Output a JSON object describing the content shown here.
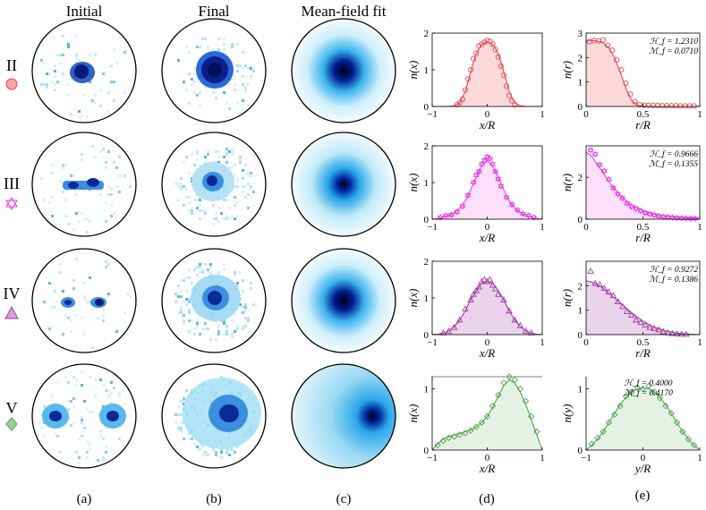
{
  "headers": {
    "initial": "Initial",
    "final": "Final",
    "meanfield": "Mean-field fit"
  },
  "row_labels": [
    "II",
    "III",
    "IV",
    "V"
  ],
  "row_markers": [
    "circle",
    "star",
    "triangle",
    "diamond"
  ],
  "row_colors": [
    "#e8474f",
    "#e83ee8",
    "#a23aa2",
    "#4fa34f"
  ],
  "fill_colors": [
    "#fbd9da",
    "#fbdffb",
    "#ecd3ec",
    "#e5f2e3"
  ],
  "sublabels": [
    "(a)",
    "(b)",
    "(c)",
    "(d)",
    "(e)"
  ],
  "chart_data": [
    {
      "type": "line",
      "panel": "d",
      "row": "II",
      "xlabel": "x/R",
      "ylabel": "n(x)",
      "xlim": [
        -1,
        1
      ],
      "ylim": [
        0,
        2
      ],
      "xticks": [
        "-1",
        "0",
        "1"
      ],
      "yticks": [
        "0",
        "1",
        "2"
      ],
      "x": [
        -1.0,
        -0.9,
        -0.8,
        -0.7,
        -0.6,
        -0.5,
        -0.4,
        -0.3,
        -0.2,
        -0.1,
        0.0,
        0.1,
        0.2,
        0.3,
        0.4,
        0.5,
        0.6,
        0.7,
        0.8,
        0.9,
        1.0
      ],
      "fit": [
        0,
        0,
        0,
        0,
        0.02,
        0.1,
        0.4,
        0.95,
        1.45,
        1.7,
        1.75,
        1.7,
        1.45,
        0.95,
        0.4,
        0.1,
        0.02,
        0,
        0,
        0,
        0
      ],
      "points_x": [
        -0.55,
        -0.5,
        -0.45,
        -0.4,
        -0.35,
        -0.3,
        -0.25,
        -0.2,
        -0.15,
        -0.1,
        -0.05,
        0.0,
        0.05,
        0.1,
        0.15,
        0.2,
        0.25,
        0.3,
        0.35,
        0.4,
        0.45,
        0.5
      ],
      "points_y": [
        0.05,
        0.1,
        0.2,
        0.45,
        0.75,
        1.0,
        1.3,
        1.45,
        1.65,
        1.7,
        1.75,
        1.8,
        1.78,
        1.7,
        1.55,
        1.35,
        1.1,
        0.85,
        0.55,
        0.3,
        0.15,
        0.05
      ]
    },
    {
      "type": "line",
      "panel": "e",
      "row": "II",
      "xlabel": "r/R",
      "ylabel": "n(r)",
      "xlim": [
        0,
        1
      ],
      "ylim": [
        0,
        3
      ],
      "xticks": [
        "0",
        "0.5",
        "1"
      ],
      "yticks": [
        "0",
        "1",
        "2",
        "3"
      ],
      "stats": [
        "ℋ_f = 1.2310",
        "ℳ_f = 0.0710"
      ],
      "x": [
        0,
        0.05,
        0.1,
        0.15,
        0.2,
        0.25,
        0.3,
        0.35,
        0.4,
        0.45,
        0.5,
        0.6,
        0.7,
        0.8,
        0.9,
        1.0
      ],
      "fit": [
        2.7,
        2.7,
        2.68,
        2.6,
        2.4,
        2.0,
        1.4,
        0.75,
        0.25,
        0.05,
        0.01,
        0,
        0,
        0,
        0,
        0
      ],
      "points_x": [
        0.03,
        0.07,
        0.11,
        0.15,
        0.19,
        0.23,
        0.27,
        0.31,
        0.35,
        0.39,
        0.43,
        0.47,
        0.51,
        0.55,
        0.59,
        0.63,
        0.67,
        0.71,
        0.75,
        0.79,
        0.83,
        0.87,
        0.91,
        0.95
      ],
      "points_y": [
        2.65,
        2.7,
        2.68,
        2.72,
        2.5,
        2.3,
        1.9,
        1.5,
        0.95,
        0.5,
        0.2,
        0.08,
        0.05,
        0.05,
        0.04,
        0.04,
        0.03,
        0.03,
        0.03,
        0.03,
        0.02,
        0.02,
        0.02,
        0.02
      ]
    },
    {
      "type": "line",
      "panel": "d",
      "row": "III",
      "xlabel": "x/R",
      "ylabel": "n(x)",
      "xlim": [
        -1,
        1
      ],
      "ylim": [
        0,
        2
      ],
      "xticks": [
        "-1",
        "0",
        "1"
      ],
      "yticks": [
        "0",
        "1",
        "2"
      ],
      "x": [
        -1.0,
        -0.9,
        -0.8,
        -0.7,
        -0.6,
        -0.5,
        -0.4,
        -0.3,
        -0.2,
        -0.1,
        0.0,
        0.1,
        0.2,
        0.3,
        0.4,
        0.5,
        0.6,
        0.7,
        0.8,
        0.9,
        1.0
      ],
      "fit": [
        0,
        0.02,
        0.05,
        0.1,
        0.18,
        0.3,
        0.5,
        0.8,
        1.15,
        1.45,
        1.6,
        1.45,
        1.15,
        0.8,
        0.5,
        0.3,
        0.18,
        0.1,
        0.05,
        0.02,
        0
      ],
      "points_x": [
        -0.85,
        -0.75,
        -0.65,
        -0.55,
        -0.45,
        -0.35,
        -0.25,
        -0.2,
        -0.15,
        -0.1,
        -0.05,
        0.0,
        0.05,
        0.1,
        0.15,
        0.2,
        0.25,
        0.35,
        0.45,
        0.55,
        0.65,
        0.75,
        0.85
      ],
      "points_y": [
        0.05,
        0.1,
        0.12,
        0.2,
        0.35,
        0.65,
        1.0,
        1.2,
        1.3,
        1.5,
        1.6,
        1.7,
        1.65,
        1.5,
        1.3,
        1.1,
        0.9,
        0.6,
        0.4,
        0.25,
        0.15,
        0.1,
        0.05
      ]
    },
    {
      "type": "line",
      "panel": "e",
      "row": "III",
      "xlabel": "r/R",
      "ylabel": "n(r)",
      "xlim": [
        0,
        1
      ],
      "ylim": [
        0,
        3.5
      ],
      "xticks": [
        "0",
        "0.5",
        "1"
      ],
      "yticks": [
        "0",
        "2"
      ],
      "stats": [
        "ℋ_f = 0.9666",
        "ℳ_f = 0.1355"
      ],
      "x": [
        0,
        0.05,
        0.1,
        0.15,
        0.2,
        0.25,
        0.3,
        0.35,
        0.4,
        0.45,
        0.5,
        0.6,
        0.7,
        0.8,
        0.9,
        1.0
      ],
      "fit": [
        3.2,
        3.0,
        2.6,
        2.2,
        1.8,
        1.45,
        1.15,
        0.9,
        0.7,
        0.55,
        0.42,
        0.25,
        0.15,
        0.1,
        0.06,
        0.04
      ],
      "points_x": [
        0.04,
        0.08,
        0.12,
        0.16,
        0.2,
        0.24,
        0.28,
        0.32,
        0.36,
        0.4,
        0.44,
        0.48,
        0.52,
        0.56,
        0.6,
        0.64,
        0.68,
        0.72,
        0.76,
        0.8,
        0.84,
        0.88,
        0.92,
        0.96
      ],
      "points_y": [
        3.3,
        3.1,
        2.6,
        2.3,
        1.9,
        1.5,
        1.2,
        1.0,
        0.75,
        0.6,
        0.5,
        0.4,
        0.3,
        0.25,
        0.2,
        0.15,
        0.12,
        0.1,
        0.08,
        0.06,
        0.05,
        0.04,
        0.03,
        0.03
      ]
    },
    {
      "type": "line",
      "panel": "d",
      "row": "IV",
      "xlabel": "x/R",
      "ylabel": "n(x)",
      "xlim": [
        -1,
        1
      ],
      "ylim": [
        0,
        2
      ],
      "xticks": [
        "-1",
        "0",
        "1"
      ],
      "yticks": [
        "0",
        "1",
        "2"
      ],
      "x": [
        -1.0,
        -0.9,
        -0.8,
        -0.7,
        -0.6,
        -0.5,
        -0.4,
        -0.3,
        -0.2,
        -0.1,
        0.0,
        0.1,
        0.2,
        0.3,
        0.4,
        0.5,
        0.6,
        0.7,
        0.8,
        0.9,
        1.0
      ],
      "fit": [
        0,
        0.01,
        0.04,
        0.1,
        0.22,
        0.4,
        0.65,
        0.95,
        1.2,
        1.4,
        1.45,
        1.4,
        1.2,
        0.95,
        0.65,
        0.4,
        0.22,
        0.1,
        0.04,
        0.01,
        0
      ],
      "points_x": [
        -0.8,
        -0.7,
        -0.6,
        -0.5,
        -0.4,
        -0.3,
        -0.25,
        -0.2,
        -0.15,
        -0.1,
        -0.05,
        0.0,
        0.05,
        0.1,
        0.15,
        0.2,
        0.3,
        0.4,
        0.5,
        0.6,
        0.7,
        0.8
      ],
      "points_y": [
        0.05,
        0.1,
        0.2,
        0.4,
        0.7,
        0.95,
        1.1,
        1.2,
        1.3,
        1.45,
        1.5,
        1.45,
        1.5,
        1.35,
        1.25,
        1.1,
        0.95,
        0.65,
        0.4,
        0.25,
        0.1,
        0.05
      ]
    },
    {
      "type": "line",
      "panel": "e",
      "row": "IV",
      "xlabel": "r/R",
      "ylabel": "n(r)",
      "xlim": [
        0,
        1
      ],
      "ylim": [
        0,
        3
      ],
      "xticks": [
        "0",
        "0.5",
        "1"
      ],
      "yticks": [
        "0",
        "1",
        "2"
      ],
      "stats": [
        "ℋ_f = 0.9272",
        "ℳ_f = 0.1386"
      ],
      "x": [
        0,
        0.05,
        0.1,
        0.15,
        0.2,
        0.25,
        0.3,
        0.35,
        0.4,
        0.45,
        0.5,
        0.6,
        0.7,
        0.8,
        0.9,
        1.0
      ],
      "fit": [
        2.2,
        2.15,
        2.05,
        1.9,
        1.7,
        1.5,
        1.3,
        1.1,
        0.9,
        0.72,
        0.55,
        0.3,
        0.15,
        0.06,
        0.02,
        0
      ],
      "points_x": [
        0.04,
        0.08,
        0.12,
        0.16,
        0.2,
        0.24,
        0.28,
        0.32,
        0.36,
        0.4,
        0.44,
        0.48,
        0.52,
        0.56,
        0.6,
        0.64,
        0.68,
        0.72,
        0.76,
        0.8,
        0.84,
        0.88
      ],
      "points_y": [
        2.6,
        2.1,
        2.05,
        1.9,
        1.75,
        1.6,
        1.35,
        1.15,
        0.95,
        0.8,
        0.6,
        0.5,
        0.4,
        0.3,
        0.25,
        0.2,
        0.12,
        0.08,
        0.05,
        0.04,
        0.02,
        0.02
      ]
    },
    {
      "type": "line",
      "panel": "d",
      "row": "V",
      "xlabel": "x/R",
      "ylabel": "n(x)",
      "xlim": [
        -1,
        1
      ],
      "ylim": [
        0,
        1.2
      ],
      "xticks": [
        "-1",
        "0",
        "1"
      ],
      "yticks": [
        "0",
        "1"
      ],
      "x": [
        -1.0,
        -0.9,
        -0.8,
        -0.7,
        -0.6,
        -0.5,
        -0.4,
        -0.3,
        -0.2,
        -0.1,
        0.0,
        0.1,
        0.2,
        0.3,
        0.4,
        0.5,
        0.6,
        0.7,
        0.8,
        0.9,
        1.0
      ],
      "fit": [
        0,
        0.1,
        0.18,
        0.22,
        0.25,
        0.27,
        0.3,
        0.33,
        0.38,
        0.45,
        0.55,
        0.7,
        0.88,
        1.05,
        1.15,
        1.1,
        0.95,
        0.75,
        0.5,
        0.25,
        0
      ],
      "points_x": [
        -0.9,
        -0.8,
        -0.7,
        -0.6,
        -0.5,
        -0.4,
        -0.3,
        -0.2,
        -0.1,
        0.0,
        0.1,
        0.2,
        0.3,
        0.4,
        0.5,
        0.6,
        0.7,
        0.8,
        0.9
      ],
      "points_y": [
        0.08,
        0.15,
        0.2,
        0.22,
        0.25,
        0.28,
        0.32,
        0.38,
        0.45,
        0.55,
        0.72,
        0.9,
        1.1,
        1.2,
        1.15,
        1.0,
        0.8,
        0.55,
        0.3
      ]
    },
    {
      "type": "line",
      "panel": "e",
      "row": "V",
      "xlabel": "y/R",
      "ylabel": "n(y)",
      "xlim": [
        -1,
        1
      ],
      "ylim": [
        0,
        1.2
      ],
      "xticks": [
        "-1",
        "0",
        "1"
      ],
      "yticks": [
        "0",
        "1"
      ],
      "stats": [
        "ℋ_f = 0.4000",
        "ℳ_f = 0.4170"
      ],
      "x": [
        -1.0,
        -0.9,
        -0.8,
        -0.7,
        -0.6,
        -0.5,
        -0.4,
        -0.3,
        -0.2,
        -0.1,
        0.0,
        0.1,
        0.2,
        0.3,
        0.4,
        0.5,
        0.6,
        0.7,
        0.8,
        0.9,
        1.0
      ],
      "fit": [
        0,
        0.08,
        0.18,
        0.3,
        0.45,
        0.6,
        0.74,
        0.86,
        0.95,
        1.0,
        1.02,
        1.0,
        0.95,
        0.86,
        0.74,
        0.6,
        0.45,
        0.3,
        0.18,
        0.08,
        0
      ],
      "points_x": [
        -0.9,
        -0.8,
        -0.7,
        -0.6,
        -0.5,
        -0.4,
        -0.3,
        -0.2,
        -0.1,
        0.0,
        0.1,
        0.2,
        0.3,
        0.4,
        0.5,
        0.6,
        0.7,
        0.8,
        0.9
      ],
      "points_y": [
        0.1,
        0.2,
        0.3,
        0.45,
        0.58,
        0.72,
        0.88,
        0.95,
        1.02,
        1.0,
        1.05,
        0.95,
        0.85,
        0.72,
        0.6,
        0.45,
        0.3,
        0.18,
        0.08
      ]
    }
  ]
}
